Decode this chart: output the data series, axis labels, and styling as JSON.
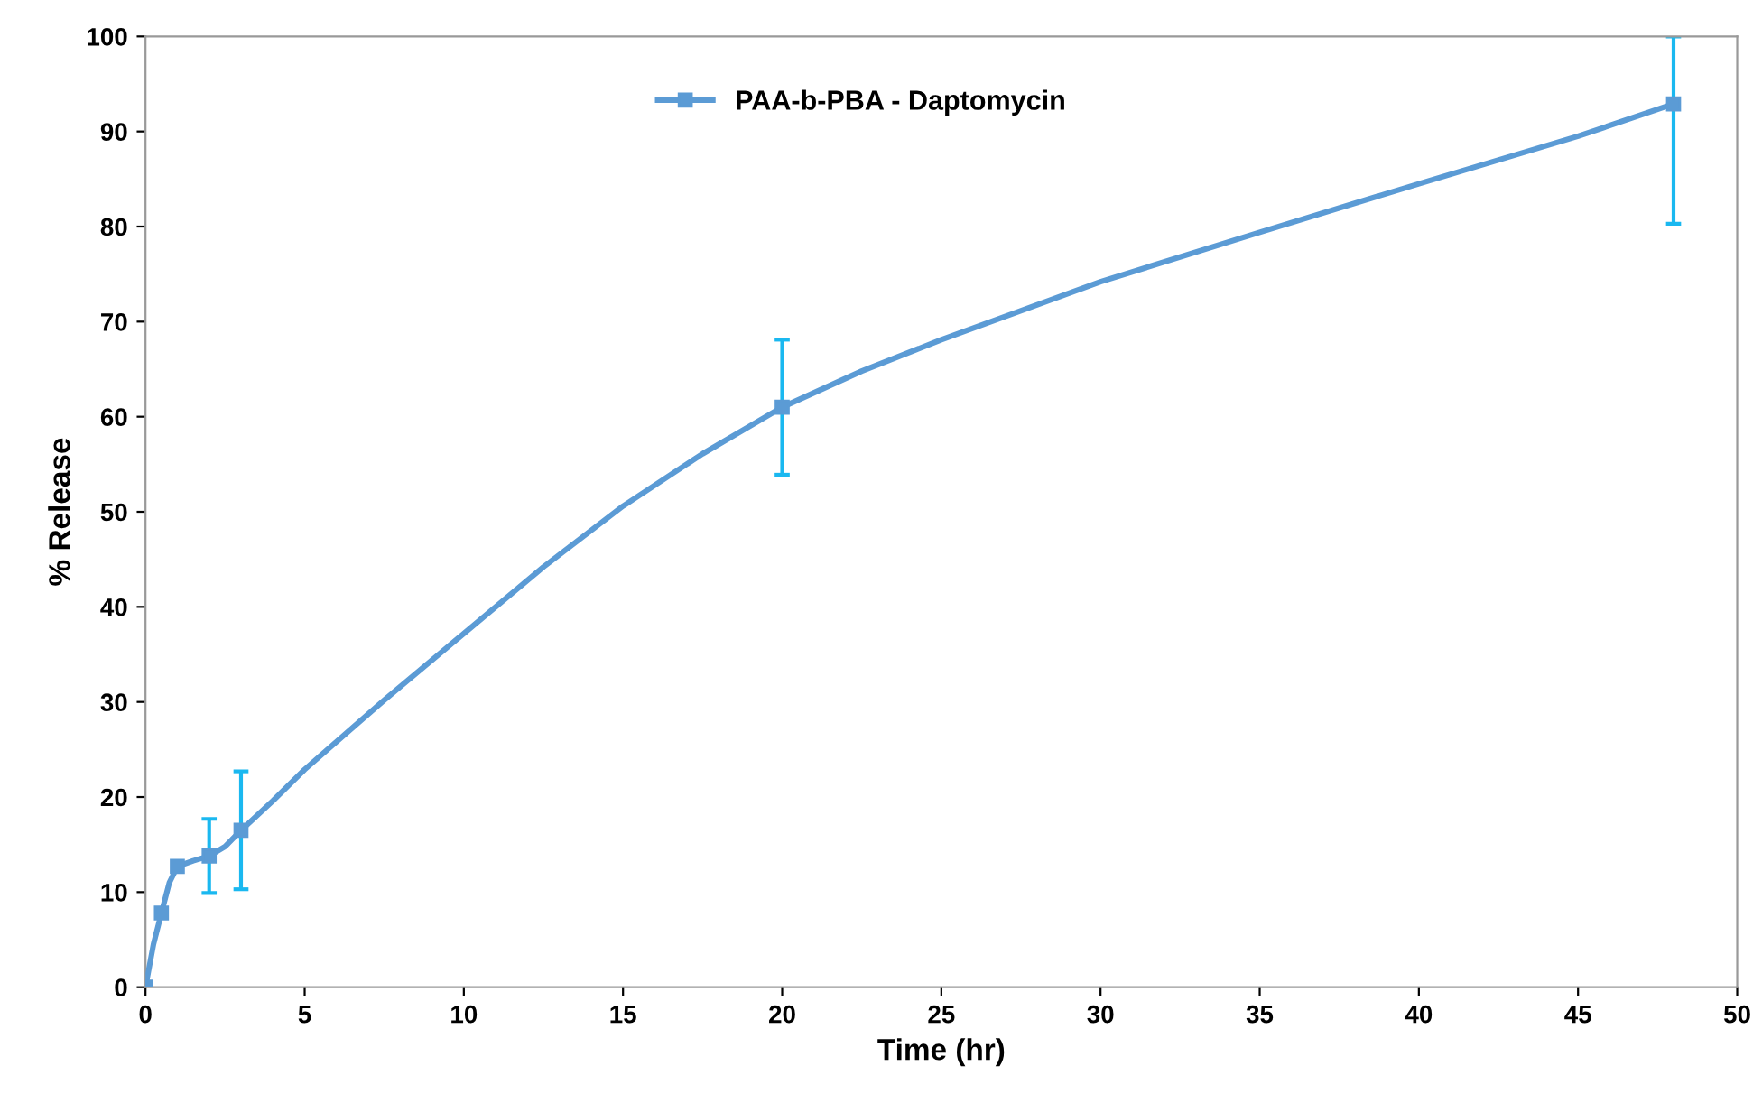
{
  "chart_data": {
    "type": "line",
    "xlabel": "Time (hr)",
    "ylabel": "% Release",
    "series": [
      {
        "color": "#5b9bd5",
        "x": [
          0,
          0.25,
          0.5,
          0.75,
          1,
          1.5,
          2,
          2.5,
          3,
          4,
          5,
          7.5,
          10,
          12.5,
          15,
          17.5,
          20,
          22.5,
          25,
          30,
          35,
          40,
          45,
          48
        ],
        "values": [
          0,
          4.5,
          7.8,
          11,
          12.7,
          13.3,
          13.8,
          14.8,
          16.5,
          19.6,
          22.9,
          30.2,
          37.2,
          44.2,
          50.6,
          56.1,
          61,
          64.8,
          68.1,
          74.2,
          79.4,
          84.5,
          89.5,
          92.9
        ],
        "marker": "none"
      },
      {
        "type": "scatter",
        "name": "PAA-b-PBA - Daptomycin",
        "color": "#5b9bd5",
        "x": [
          0,
          0.5,
          1,
          2,
          3,
          20,
          48
        ],
        "values": [
          0,
          7.8,
          12.7,
          13.8,
          16.5,
          61,
          92.9
        ],
        "errors": [
          null,
          null,
          null,
          3.9,
          6.2,
          7.1,
          [
            80.3,
            100
          ]
        ],
        "marker": "square"
      }
    ],
    "line_style": "solid",
    "legend": "top",
    "grid": false,
    "xlim": [
      0,
      50
    ],
    "xticks": [
      0,
      5,
      10,
      15,
      20,
      25,
      30,
      35,
      40,
      45,
      50
    ],
    "ylim": [
      0,
      100
    ],
    "yticks": [
      0,
      10,
      20,
      30,
      40,
      50,
      60,
      70,
      80,
      90,
      100
    ]
  }
}
